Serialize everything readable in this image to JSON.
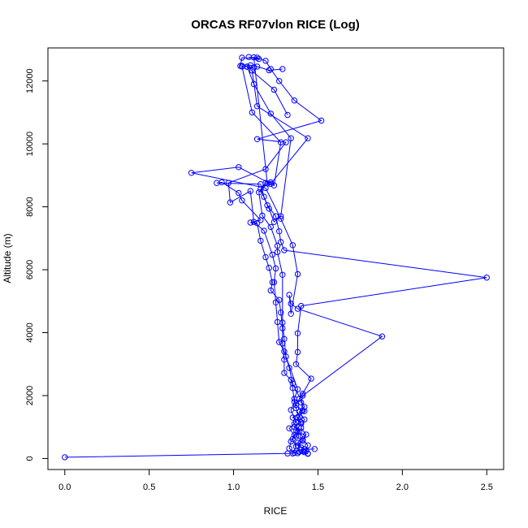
{
  "chart_data": {
    "type": "line",
    "title": "ORCAS RF07vlon RICE (Log)",
    "xlabel": "RICE",
    "ylabel": "Altitude (m)",
    "xlim": [
      -0.1,
      2.6
    ],
    "ylim": [
      -350,
      13050
    ],
    "xticks": [
      0.0,
      0.5,
      1.0,
      1.5,
      2.0,
      2.5
    ],
    "xtick_labels": [
      "0.0",
      "0.5",
      "1.0",
      "1.5",
      "2.0",
      "2.5"
    ],
    "yticks": [
      0,
      2000,
      4000,
      6000,
      8000,
      10000,
      12000
    ],
    "ytick_labels": [
      "0",
      "2000",
      "4000",
      "6000",
      "8000",
      "10000",
      "12000"
    ],
    "grid": false,
    "marker": "open-circle",
    "color": "#0000ff",
    "series": [
      {
        "points": [
          [
            0.0,
            40
          ],
          [
            1.32,
            160
          ],
          [
            1.38,
            170
          ],
          [
            1.44,
            150
          ],
          [
            1.39,
            210
          ],
          [
            1.42,
            300
          ],
          [
            1.38,
            420
          ],
          [
            1.41,
            560
          ],
          [
            1.37,
            700
          ],
          [
            1.39,
            860
          ],
          [
            1.36,
            1000
          ],
          [
            1.4,
            1150
          ],
          [
            1.35,
            1300
          ],
          [
            1.41,
            1520
          ],
          [
            1.37,
            1700
          ],
          [
            1.39,
            1900
          ],
          [
            1.41,
            2060
          ],
          [
            1.46,
            2540
          ],
          [
            1.37,
            3000
          ],
          [
            1.38,
            3380
          ],
          [
            1.38,
            3980
          ],
          [
            1.4,
            4850
          ],
          [
            2.5,
            5750
          ],
          [
            1.3,
            6620
          ],
          [
            1.28,
            6880
          ],
          [
            1.27,
            7220
          ],
          [
            1.25,
            7700
          ],
          [
            1.2,
            8050
          ],
          [
            1.16,
            8560
          ],
          [
            1.19,
            8760
          ],
          [
            1.22,
            8780
          ],
          [
            1.24,
            8680
          ],
          [
            1.28,
            10050
          ],
          [
            1.11,
            11000
          ],
          [
            1.05,
            12460
          ],
          [
            1.1,
            12500
          ],
          [
            1.14,
            12460
          ],
          [
            1.21,
            12340
          ],
          [
            1.29,
            12380
          ]
        ]
      },
      {
        "points": [
          [
            1.48,
            300
          ],
          [
            1.4,
            280
          ],
          [
            1.36,
            180
          ],
          [
            1.33,
            320
          ],
          [
            1.34,
            540
          ],
          [
            1.36,
            740
          ],
          [
            1.33,
            960
          ],
          [
            1.37,
            1160
          ],
          [
            1.34,
            1540
          ],
          [
            1.36,
            1800
          ],
          [
            1.35,
            2240
          ],
          [
            1.34,
            2500
          ],
          [
            1.3,
            2720
          ],
          [
            1.3,
            3140
          ],
          [
            1.29,
            3660
          ],
          [
            1.29,
            4140
          ],
          [
            1.28,
            4640
          ],
          [
            1.27,
            5040
          ],
          [
            1.22,
            5340
          ],
          [
            1.23,
            5600
          ],
          [
            1.21,
            6060
          ],
          [
            1.19,
            6400
          ],
          [
            1.16,
            6920
          ],
          [
            1.14,
            7480
          ],
          [
            1.1,
            7500
          ],
          [
            1.16,
            7580
          ],
          [
            1.05,
            8200
          ],
          [
            1.03,
            8440
          ],
          [
            0.93,
            8780
          ],
          [
            0.9,
            8760
          ],
          [
            1.16,
            8720
          ],
          [
            1.18,
            8320
          ],
          [
            1.21,
            7940
          ],
          [
            1.24,
            7520
          ],
          [
            1.28,
            7700
          ],
          [
            1.34,
            10180
          ],
          [
            1.22,
            10960
          ],
          [
            1.12,
            11900
          ],
          [
            1.08,
            12460
          ],
          [
            1.05,
            12480
          ]
        ]
      },
      {
        "points": [
          [
            1.44,
            160
          ],
          [
            1.43,
            250
          ],
          [
            1.4,
            350
          ],
          [
            1.38,
            500
          ],
          [
            1.41,
            700
          ],
          [
            1.37,
            900
          ],
          [
            1.4,
            1100
          ],
          [
            1.38,
            1300
          ],
          [
            1.42,
            1500
          ],
          [
            1.4,
            1780
          ],
          [
            1.41,
            2000
          ],
          [
            1.88,
            3880
          ],
          [
            1.38,
            4760
          ],
          [
            1.34,
            4920
          ],
          [
            1.33,
            5200
          ],
          [
            1.34,
            4600
          ],
          [
            1.38,
            5860
          ],
          [
            1.35,
            6780
          ],
          [
            1.28,
            7620
          ],
          [
            1.19,
            8600
          ],
          [
            0.75,
            9080
          ],
          [
            1.03,
            9260
          ],
          [
            1.22,
            8730
          ],
          [
            1.44,
            10180
          ],
          [
            1.14,
            11200
          ],
          [
            1.11,
            12330
          ]
        ]
      },
      {
        "points": [
          [
            1.35,
            160
          ],
          [
            1.37,
            380
          ],
          [
            1.35,
            620
          ],
          [
            1.38,
            840
          ],
          [
            1.36,
            1100
          ],
          [
            1.39,
            1320
          ],
          [
            1.37,
            1600
          ],
          [
            1.36,
            1900
          ],
          [
            1.38,
            2200
          ],
          [
            1.3,
            3400
          ],
          [
            1.27,
            3700
          ],
          [
            1.26,
            4340
          ],
          [
            1.25,
            4960
          ],
          [
            1.24,
            5600
          ],
          [
            1.25,
            6040
          ],
          [
            1.23,
            6480
          ],
          [
            1.18,
            7240
          ],
          [
            1.12,
            7520
          ],
          [
            1.1,
            8500
          ],
          [
            0.98,
            8140
          ],
          [
            0.97,
            8760
          ],
          [
            1.19,
            9200
          ],
          [
            1.31,
            10050
          ],
          [
            1.14,
            10150
          ],
          [
            1.52,
            10740
          ],
          [
            1.36,
            11380
          ],
          [
            1.27,
            12000
          ],
          [
            1.22,
            12380
          ],
          [
            1.19,
            12640
          ],
          [
            1.14,
            12740
          ],
          [
            1.09,
            12760
          ]
        ]
      },
      {
        "points": [
          [
            1.42,
            200
          ],
          [
            1.44,
            420
          ],
          [
            1.41,
            600
          ],
          [
            1.43,
            760
          ],
          [
            1.4,
            980
          ],
          [
            1.42,
            1240
          ],
          [
            1.39,
            1480
          ],
          [
            1.42,
            1640
          ],
          [
            1.35,
            2380
          ],
          [
            1.33,
            2880
          ],
          [
            1.31,
            3240
          ],
          [
            1.3,
            3800
          ],
          [
            1.29,
            4320
          ],
          [
            1.29,
            5840
          ],
          [
            1.26,
            6560
          ],
          [
            1.26,
            6760
          ],
          [
            1.22,
            7360
          ],
          [
            1.17,
            7720
          ],
          [
            1.15,
            8460
          ],
          [
            1.2,
            8740
          ],
          [
            1.12,
            12750
          ],
          [
            1.15,
            12700
          ],
          [
            1.05,
            12740
          ],
          [
            1.04,
            12480
          ],
          [
            1.12,
            12430
          ],
          [
            1.08,
            12450
          ],
          [
            1.24,
            11720
          ],
          [
            1.32,
            10920
          ]
        ]
      }
    ]
  }
}
